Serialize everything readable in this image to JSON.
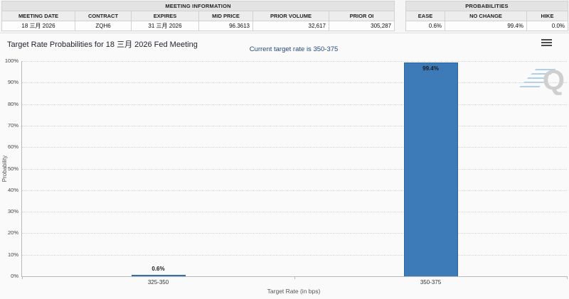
{
  "meeting_info": {
    "title": "MEETING INFORMATION",
    "columns": [
      "MEETING DATE",
      "CONTRACT",
      "EXPIRES",
      "MID PRICE",
      "PRIOR VOLUME",
      "PRIOR OI"
    ],
    "values": [
      "18 三月 2026",
      "ZQH6",
      "31 三月 2026",
      "96.3613",
      "32,617",
      "305,287"
    ]
  },
  "probabilities": {
    "title": "PROBABILITIES",
    "columns": [
      "EASE",
      "NO CHANGE",
      "HIKE"
    ],
    "values": [
      "0.6%",
      "99.4%",
      "0.0%"
    ]
  },
  "chart_data": {
    "type": "bar",
    "title": "Target Rate Probabilities for 18 三月 2026 Fed Meeting",
    "subtitle": "Current target rate is 350-375",
    "xlabel": "Target Rate (in bps)",
    "ylabel": "Probability",
    "categories": [
      "325-350",
      "350-375"
    ],
    "values": [
      0.6,
      99.4
    ],
    "value_labels": [
      "0.6%",
      "99.4%"
    ],
    "ylim": [
      0,
      100
    ],
    "ytick_step": 10,
    "ytick_labels": [
      "0%",
      "10%",
      "20%",
      "30%",
      "40%",
      "50%",
      "60%",
      "70%",
      "80%",
      "90%",
      "100%"
    ],
    "grid": "horizontal-dotted",
    "legend": "none",
    "bar_color": "#3d7ab8",
    "bar_border_color": "#2f689e"
  },
  "icons": {
    "menu": "hamburger-menu",
    "watermark": "Q"
  },
  "colors": {
    "page_bg": "#f6f6f6",
    "chart_bg": "#fafafa",
    "subtitle_text": "#27457c",
    "bar": "#3d7ab8"
  }
}
